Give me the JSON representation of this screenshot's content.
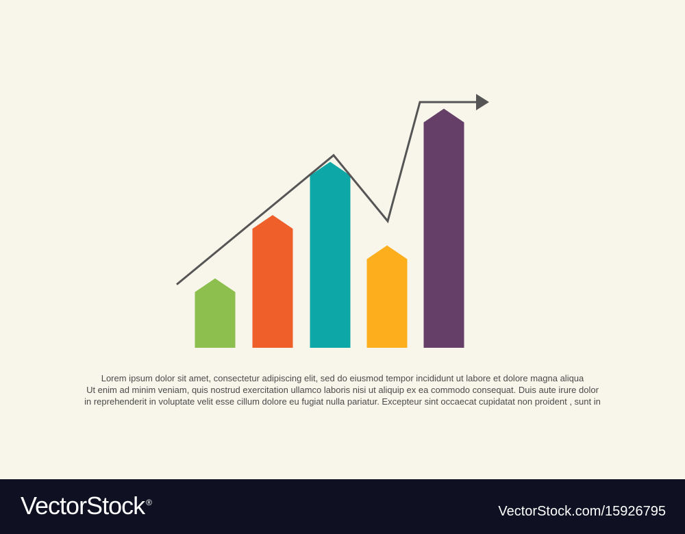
{
  "chart_data": {
    "type": "bar",
    "categories": [
      "",
      "",
      "",
      "",
      ""
    ],
    "values": [
      22,
      47,
      68,
      35,
      89
    ],
    "bar_colors": [
      "#8dbf4e",
      "#ef5f2a",
      "#0ca7a6",
      "#fdae1c",
      "#663f68"
    ],
    "ylim": [
      0,
      100
    ],
    "grid": false,
    "legend": "none",
    "trend_line": {
      "color": "#555555",
      "values": [
        25,
        76,
        50,
        97,
        97
      ],
      "arrow": "end"
    }
  },
  "caption": {
    "line1": "Lorem ipsum dolor sit amet, consectetur adipiscing elit, sed do eiusmod tempor incididunt ut labore et dolore magna aliqua",
    "line2": "Ut enim ad minim veniam, quis nostrud exercitation ullamco laboris nisi ut aliquip ex ea commodo consequat. Duis aute irure dolor",
    "line3": "in reprehenderit in voluptate velit esse cillum dolore eu fugiat nulla pariatur. Excepteur sint occaecat cupidatat non proident , sunt in"
  },
  "footer": {
    "brand": "VectorStock",
    "reg_mark": "®",
    "url": "VectorStock.com/15926795",
    "background": "#0f1122"
  }
}
